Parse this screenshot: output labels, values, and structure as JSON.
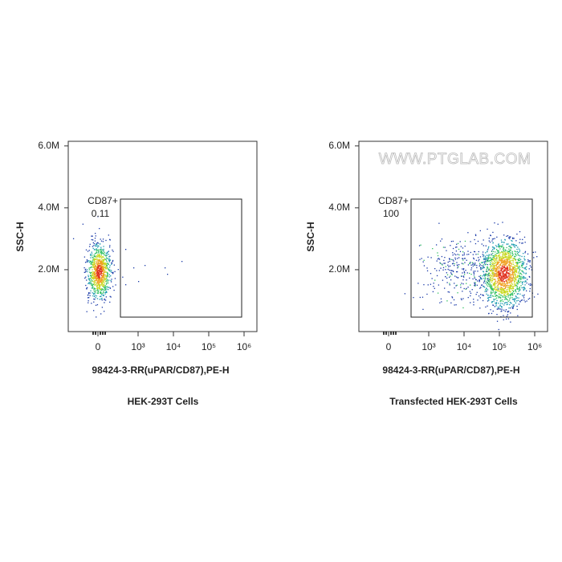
{
  "chart_data": [
    {
      "type": "scatter",
      "title": "HEK-293T Cells",
      "xlabel": "98424-3-RR(uPAR/CD87),PE-H",
      "ylabel": "SSC-H",
      "xscale": "biexponential",
      "xlim": [
        -740,
        2300000
      ],
      "xticks": [
        0,
        {
          "value": 1000,
          "label": "10³"
        },
        {
          "value": 10000,
          "label": "10⁴"
        },
        {
          "value": 100000,
          "label": "10⁵"
        },
        {
          "value": 1000000,
          "label": "10⁶"
        }
      ],
      "ylim": [
        0,
        6150000
      ],
      "yticks": [
        {
          "value": 2000000,
          "label": "2.0M"
        },
        {
          "value": 4000000,
          "label": "4.0M"
        },
        {
          "value": 6000000,
          "label": "6.0M"
        }
      ],
      "gate": {
        "label": "CD87+",
        "percent": 0.11
      }
    },
    {
      "type": "scatter",
      "title": "Transfected HEK-293T Cells",
      "xlabel": "98424-3-RR(uPAR/CD87),PE-H",
      "ylabel": "SSC-H",
      "watermark": "WWW.PTGLAB.COM",
      "xscale": "biexponential",
      "xlim": [
        -740,
        2300000
      ],
      "xticks": [
        0,
        {
          "value": 1000,
          "label": "10³"
        },
        {
          "value": 10000,
          "label": "10⁴"
        },
        {
          "value": 100000,
          "label": "10⁵"
        },
        {
          "value": 1000000,
          "label": "10⁶"
        }
      ],
      "ylim": [
        0,
        6150000
      ],
      "yticks": [
        {
          "value": 2000000,
          "label": "2.0M"
        },
        {
          "value": 4000000,
          "label": "4.0M"
        },
        {
          "value": 6000000,
          "label": "6.0M"
        }
      ],
      "gate": {
        "label": "CD87+",
        "percent": 100
      }
    }
  ]
}
